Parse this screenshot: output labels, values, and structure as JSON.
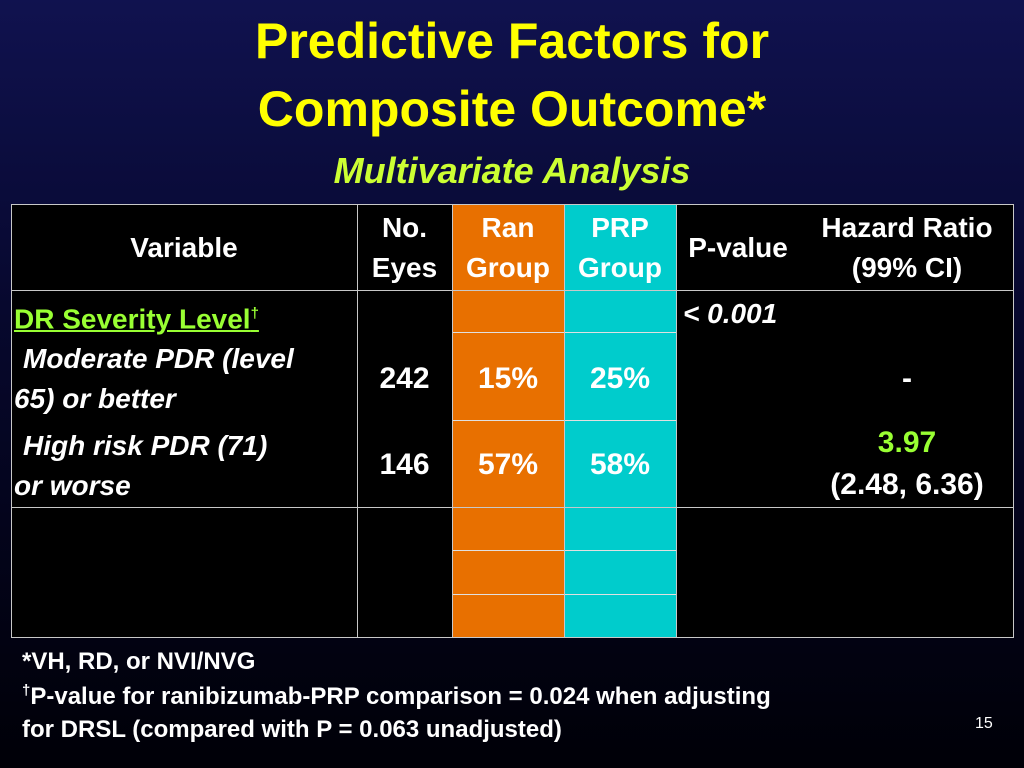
{
  "slide": {
    "title_line1": "Predictive Factors for",
    "title_line2": "Composite Outcome*",
    "subtitle": "Multivariate Analysis",
    "page_number": "15"
  },
  "table": {
    "headers": {
      "variable": "Variable",
      "no_eyes_1": "No.",
      "no_eyes_2": "Eyes",
      "ran_1": "Ran",
      "ran_2": "Group",
      "prp_1": "PRP",
      "prp_2": "Group",
      "pvalue": "P-value",
      "hr_1": "Hazard Ratio",
      "hr_2": "(99% CI)"
    },
    "section": {
      "label": "DR Severity Level",
      "dagger": "†",
      "pvalue": "< 0.001"
    },
    "rows": [
      {
        "label_line1": "Moderate PDR (level",
        "label_line2": "65) or better",
        "eyes": "242",
        "ran": "15%",
        "prp": "25%",
        "hr": "-",
        "ci": ""
      },
      {
        "label_line1": "High risk PDR (71)",
        "label_line2": "or worse",
        "eyes": "146",
        "ran": "57%",
        "prp": "58%",
        "hr": "3.97",
        "ci": "(2.48, 6.36)"
      }
    ]
  },
  "footnotes": {
    "line1": "*VH, RD, or NVI/NVG",
    "dagger": "†",
    "line2": "P-value for ranibizumab-PRP comparison = 0.024 when adjusting",
    "line3": "for DRSL (compared with P = 0.063 unadjusted)"
  },
  "colors": {
    "title": "#ffff00",
    "subtitle": "#ccff33",
    "ran_group": "#e87000",
    "prp_group": "#00cccc",
    "highlight_value": "#99ff33"
  }
}
